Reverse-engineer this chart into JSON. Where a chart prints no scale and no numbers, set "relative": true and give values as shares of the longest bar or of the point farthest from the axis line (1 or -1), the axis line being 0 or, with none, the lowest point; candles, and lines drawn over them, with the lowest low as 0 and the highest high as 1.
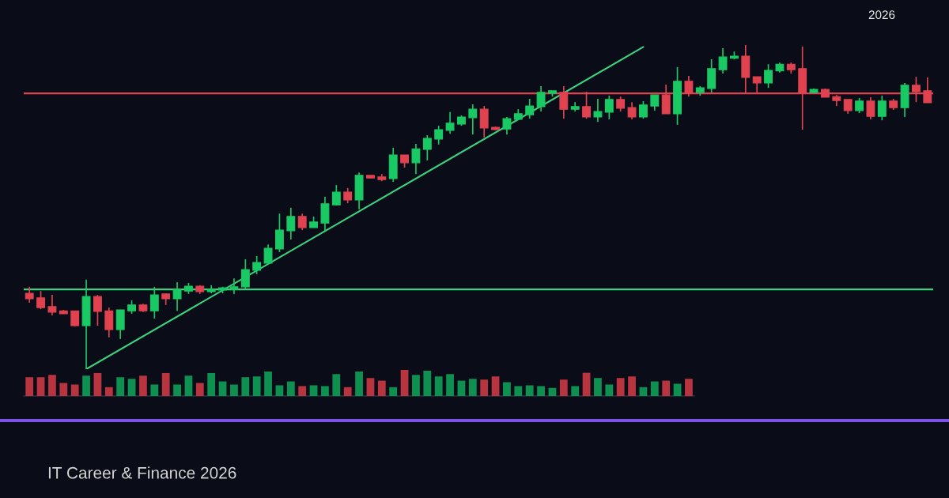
{
  "chart_data": [
    {
      "type": "candlestick",
      "relative": true,
      "categories": [
        null,
        null,
        null,
        null,
        null,
        null,
        null,
        null,
        null,
        null,
        null,
        null,
        null,
        null,
        null,
        null,
        null,
        null,
        null,
        null,
        null,
        null,
        null,
        null,
        null,
        null,
        null,
        null,
        null,
        null,
        null,
        null,
        null,
        null,
        null,
        null,
        null,
        null,
        null,
        null,
        null,
        null,
        null,
        null,
        null,
        null,
        null,
        null,
        null,
        null,
        null,
        null,
        null,
        null,
        null,
        null,
        null,
        null,
        null,
        null,
        null,
        null,
        null,
        null,
        null,
        null,
        null,
        null,
        null,
        null,
        null,
        null,
        null,
        null,
        null,
        null,
        null,
        null,
        null,
        null
      ],
      "ohlc": [
        [
          0.234,
          0.254,
          0.205,
          0.217
        ],
        [
          0.22,
          0.241,
          0.185,
          0.19
        ],
        [
          0.193,
          0.229,
          0.166,
          0.176
        ],
        [
          0.18,
          0.183,
          0.171,
          0.171
        ],
        [
          0.18,
          0.18,
          0.132,
          0.134
        ],
        [
          0.134,
          0.276,
          0.0,
          0.224
        ],
        [
          0.224,
          0.229,
          0.134,
          0.178
        ],
        [
          0.18,
          0.19,
          0.098,
          0.122
        ],
        [
          0.122,
          0.183,
          0.093,
          0.183
        ],
        [
          0.18,
          0.212,
          0.171,
          0.198
        ],
        [
          0.198,
          0.202,
          0.176,
          0.18
        ],
        [
          0.18,
          0.254,
          0.156,
          0.229
        ],
        [
          0.232,
          0.234,
          0.198,
          0.217
        ],
        [
          0.217,
          0.268,
          0.18,
          0.246
        ],
        [
          0.241,
          0.266,
          0.232,
          0.256
        ],
        [
          0.256,
          0.259,
          0.232,
          0.239
        ],
        [
          0.239,
          0.259,
          0.234,
          0.246
        ],
        [
          0.244,
          0.254,
          0.234,
          0.251
        ],
        [
          0.246,
          0.28,
          0.232,
          0.254
        ],
        [
          0.254,
          0.339,
          0.249,
          0.307
        ],
        [
          0.305,
          0.349,
          0.293,
          0.329
        ],
        [
          0.327,
          0.385,
          0.322,
          0.373
        ],
        [
          0.371,
          0.48,
          0.361,
          0.429
        ],
        [
          0.427,
          0.498,
          0.4,
          0.471
        ],
        [
          0.471,
          0.48,
          0.429,
          0.437
        ],
        [
          0.437,
          0.471,
          0.437,
          0.454
        ],
        [
          0.451,
          0.532,
          0.427,
          0.51
        ],
        [
          0.507,
          0.568,
          0.505,
          0.546
        ],
        [
          0.546,
          0.559,
          0.512,
          0.522
        ],
        [
          0.522,
          0.607,
          0.493,
          0.598
        ],
        [
          0.598,
          0.598,
          0.588,
          0.59
        ],
        [
          0.593,
          0.602,
          0.58,
          0.585
        ],
        [
          0.588,
          0.683,
          0.578,
          0.661
        ],
        [
          0.661,
          0.661,
          0.622,
          0.637
        ],
        [
          0.637,
          0.695,
          0.602,
          0.68
        ],
        [
          0.678,
          0.722,
          0.644,
          0.712
        ],
        [
          0.71,
          0.751,
          0.693,
          0.739
        ],
        [
          0.737,
          0.793,
          0.727,
          0.759
        ],
        [
          0.756,
          0.783,
          0.751,
          0.778
        ],
        [
          0.776,
          0.817,
          0.724,
          0.802
        ],
        [
          0.802,
          0.812,
          0.715,
          0.744
        ],
        [
          0.746,
          0.749,
          0.737,
          0.739
        ],
        [
          0.741,
          0.778,
          0.724,
          0.773
        ],
        [
          0.771,
          0.802,
          0.768,
          0.788
        ],
        [
          0.785,
          0.834,
          0.773,
          0.812
        ],
        [
          0.81,
          0.873,
          0.795,
          0.854
        ],
        [
          0.851,
          0.859,
          0.841,
          0.859
        ],
        [
          0.854,
          0.873,
          0.773,
          0.802
        ],
        [
          0.802,
          0.824,
          0.795,
          0.81
        ],
        [
          0.81,
          0.856,
          0.773,
          0.778
        ],
        [
          0.778,
          0.834,
          0.763,
          0.795
        ],
        [
          0.793,
          0.844,
          0.771,
          0.832
        ],
        [
          0.832,
          0.841,
          0.795,
          0.805
        ],
        [
          0.807,
          0.824,
          0.771,
          0.778
        ],
        [
          0.778,
          0.827,
          0.773,
          0.815
        ],
        [
          0.812,
          0.846,
          0.798,
          0.846
        ],
        [
          0.846,
          0.878,
          0.788,
          0.788
        ],
        [
          0.788,
          0.932,
          0.754,
          0.888
        ],
        [
          0.888,
          0.905,
          0.841,
          0.851
        ],
        [
          0.854,
          0.873,
          0.844,
          0.868
        ],
        [
          0.866,
          0.956,
          0.854,
          0.927
        ],
        [
          0.924,
          0.99,
          0.912,
          0.963
        ],
        [
          0.959,
          0.98,
          0.956,
          0.966
        ],
        [
          0.966,
          1.0,
          0.854,
          0.9
        ],
        [
          0.902,
          0.902,
          0.854,
          0.883
        ],
        [
          0.883,
          0.941,
          0.868,
          0.922
        ],
        [
          0.92,
          0.946,
          0.915,
          0.941
        ],
        [
          0.941,
          0.946,
          0.912,
          0.924
        ],
        [
          0.927,
          0.995,
          0.739,
          0.851
        ],
        [
          0.854,
          0.866,
          0.851,
          0.863
        ],
        [
          0.863,
          0.866,
          0.839,
          0.839
        ],
        [
          0.841,
          0.846,
          0.812,
          0.829
        ],
        [
          0.832,
          0.832,
          0.788,
          0.798
        ],
        [
          0.798,
          0.837,
          0.79,
          0.827
        ],
        [
          0.827,
          0.839,
          0.771,
          0.78
        ],
        [
          0.78,
          0.844,
          0.768,
          0.827
        ],
        [
          0.827,
          0.834,
          0.8,
          0.807
        ],
        [
          0.807,
          0.883,
          0.778,
          0.876
        ],
        [
          0.876,
          0.902,
          0.824,
          0.856
        ],
        [
          0.859,
          0.9,
          0.822,
          0.822
        ]
      ],
      "colors": [
        "#e04250",
        "#e04250",
        "#e04250",
        "#e04250",
        "#e04250",
        "#19c964",
        "#e04250",
        "#e04250",
        "#19c964",
        "#19c964",
        "#e04250",
        "#19c964",
        "#e04250",
        "#19c964",
        "#19c964",
        "#e04250",
        "#19c964",
        "#19c964",
        "#19c964",
        "#19c964",
        "#19c964",
        "#19c964",
        "#19c964",
        "#19c964",
        "#e04250",
        "#19c964",
        "#19c964",
        "#19c964",
        "#e04250",
        "#19c964",
        "#e04250",
        "#e04250",
        "#19c964",
        "#e04250",
        "#19c964",
        "#19c964",
        "#19c964",
        "#19c964",
        "#19c964",
        "#19c964",
        "#e04250",
        "#e04250",
        "#19c964",
        "#19c964",
        "#19c964",
        "#19c964",
        "#19c964",
        "#e04250",
        "#19c964",
        "#e04250",
        "#19c964",
        "#19c964",
        "#e04250",
        "#e04250",
        "#19c964",
        "#19c964",
        "#e04250",
        "#19c964",
        "#e04250",
        "#19c964",
        "#19c964",
        "#19c964",
        "#19c964",
        "#e04250",
        "#e04250",
        "#19c964",
        "#19c964",
        "#e04250",
        "#e04250",
        "#19c964",
        "#e04250",
        "#e04250",
        "#e04250",
        "#19c964",
        "#e04250",
        "#19c964",
        "#e04250",
        "#19c964",
        "#e04250",
        "#e04250"
      ],
      "series": [
        {
          "type": "line",
          "color": "#3ad27e",
          "values": [
            null,
            null,
            null,
            null,
            null,
            0.0,
            null,
            null,
            null,
            null,
            null,
            null,
            null,
            null,
            null,
            null,
            null,
            null,
            null,
            null,
            null,
            null,
            null,
            null,
            null,
            null,
            null,
            null,
            null,
            null,
            null,
            null,
            null,
            null,
            null,
            null,
            null,
            null,
            null,
            null,
            null,
            null,
            null,
            null,
            null,
            null,
            null,
            null,
            null,
            null,
            null,
            null,
            null,
            null,
            0.994,
            null,
            null,
            null,
            null,
            null,
            null,
            null,
            null,
            null,
            null,
            null,
            null,
            null,
            null,
            null,
            null,
            null,
            null,
            null,
            null,
            null,
            null,
            null,
            null,
            null
          ]
        }
      ],
      "ref_lines": [
        {
          "axis": "y",
          "value": 0.851,
          "color": "#e04250"
        },
        {
          "axis": "y",
          "value": 0.246,
          "color": "#3ad27e"
        }
      ],
      "annotations": [
        "2026",
        "IT Career & Finance 2026"
      ]
    },
    {
      "type": "bar",
      "relative": true,
      "categories": [
        null,
        null,
        null,
        null,
        null,
        null,
        null,
        null,
        null,
        null,
        null,
        null,
        null,
        null,
        null,
        null,
        null,
        null,
        null,
        null,
        null,
        null,
        null,
        null,
        null,
        null,
        null,
        null,
        null,
        null,
        null,
        null,
        null,
        null,
        null,
        null,
        null,
        null,
        null,
        null,
        null,
        null,
        null,
        null,
        null,
        null,
        null,
        null,
        null,
        null,
        null,
        null,
        null,
        null,
        null,
        null,
        null,
        null,
        null
      ],
      "values": [
        0.72,
        0.72,
        0.81,
        0.5,
        0.44,
        0.78,
        0.88,
        0.34,
        0.72,
        0.66,
        0.78,
        0.44,
        0.88,
        0.44,
        0.78,
        0.5,
        0.88,
        0.56,
        0.44,
        0.72,
        0.75,
        0.94,
        0.41,
        0.56,
        0.38,
        0.41,
        0.38,
        0.84,
        0.34,
        0.94,
        0.69,
        0.59,
        0.34,
        1.0,
        0.81,
        0.97,
        0.75,
        0.84,
        0.59,
        0.66,
        0.63,
        0.75,
        0.53,
        0.38,
        0.41,
        0.38,
        0.31,
        0.63,
        0.38,
        0.89,
        0.69,
        0.44,
        0.69,
        0.75,
        0.34,
        0.56,
        0.59,
        0.47,
        0.66
      ],
      "colors": [
        "#b83540",
        "#b83540",
        "#b83540",
        "#b83540",
        "#b83540",
        "#0e9150",
        "#b83540",
        "#b83540",
        "#0e9150",
        "#0e9150",
        "#b83540",
        "#0e9150",
        "#b83540",
        "#0e9150",
        "#0e9150",
        "#b83540",
        "#0e9150",
        "#0e9150",
        "#0e9150",
        "#0e9150",
        "#0e9150",
        "#0e9150",
        "#0e9150",
        "#0e9150",
        "#b83540",
        "#0e9150",
        "#0e9150",
        "#0e9150",
        "#b83540",
        "#0e9150",
        "#b83540",
        "#b83540",
        "#0e9150",
        "#b83540",
        "#0e9150",
        "#0e9150",
        "#0e9150",
        "#0e9150",
        "#0e9150",
        "#0e9150",
        "#b83540",
        "#b83540",
        "#0e9150",
        "#0e9150",
        "#0e9150",
        "#0e9150",
        "#0e9150",
        "#b83540",
        "#0e9150",
        "#b83540",
        "#0e9150",
        "#0e9150",
        "#b83540",
        "#b83540",
        "#0e9150",
        "#0e9150",
        "#b83540",
        "#0e9150",
        "#b83540"
      ]
    }
  ]
}
